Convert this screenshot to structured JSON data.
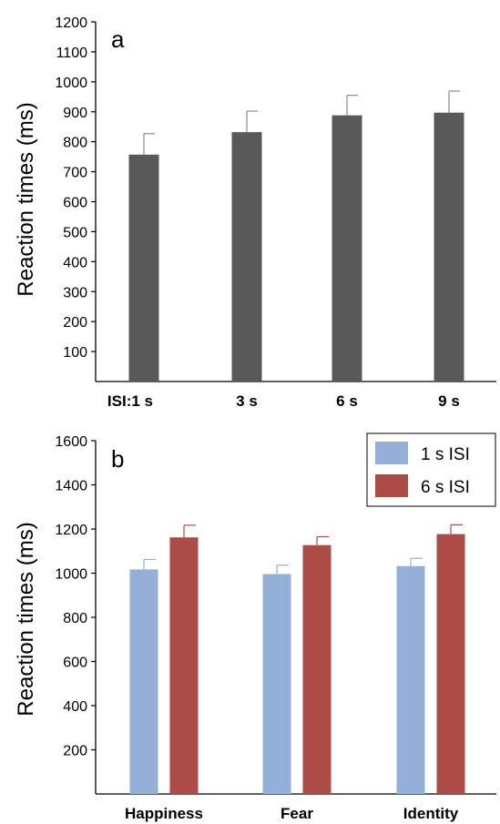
{
  "chart_data": [
    {
      "type": "bar",
      "panel_label": "a",
      "ylabel": "Reaction times (ms)",
      "xlabel": "",
      "categories": [
        "ISI:1 s",
        "3 s",
        "6 s",
        "9 s"
      ],
      "ylim": [
        0,
        1200
      ],
      "yticks": [
        100,
        200,
        300,
        400,
        500,
        600,
        700,
        800,
        900,
        1000,
        1100,
        1200
      ],
      "series": [
        {
          "values": [
            757,
            832,
            888,
            897
          ],
          "errors": [
            70,
            70,
            67,
            72
          ],
          "color": "#595959"
        }
      ],
      "grid": false
    },
    {
      "type": "bar",
      "panel_label": "b",
      "ylabel": "Reaction times (ms)",
      "xlabel": "",
      "categories": [
        "Happiness",
        "Fear",
        "Identity"
      ],
      "ylim": [
        0,
        1600
      ],
      "yticks": [
        200,
        400,
        600,
        800,
        1000,
        1200,
        1400,
        1600
      ],
      "series": [
        {
          "name": "1 s ISI",
          "values": [
            1017,
            996,
            1032
          ],
          "errors": [
            45,
            40,
            35
          ],
          "color": "#95b0d8"
        },
        {
          "name": "6 s ISI",
          "values": [
            1162,
            1127,
            1177
          ],
          "errors": [
            55,
            38,
            42
          ],
          "color": "#ad4b47"
        }
      ],
      "legend": "top-right",
      "grid": false
    }
  ]
}
